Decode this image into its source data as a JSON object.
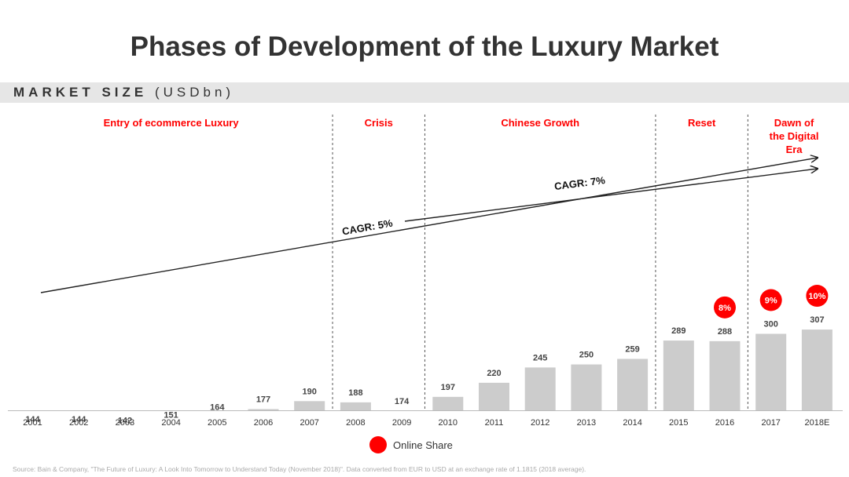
{
  "title": "Phases of Development of the Luxury Market",
  "band": {
    "main": "MARKET SIZE",
    "unit": "(USDbn)"
  },
  "legend": {
    "label": "Online Share",
    "color": "#ff0000"
  },
  "source": "Source: Bain & Company, \"The Future of Luxury: A Look Into Tomorrow to Understand Today (November 2018)\". Data converted from EUR to USD at an exchange rate of 1.1815 (2018 average).",
  "chart_data": {
    "type": "bar",
    "categories": [
      "2001",
      "2002",
      "2003",
      "2004",
      "2005",
      "2006",
      "2007",
      "2008",
      "2009",
      "2010",
      "2011",
      "2012",
      "2013",
      "2014",
      "2015",
      "2016",
      "2017",
      "2018E"
    ],
    "values": [
      144,
      144,
      142,
      151,
      164,
      177,
      190,
      188,
      174,
      197,
      220,
      245,
      250,
      259,
      289,
      288,
      300,
      307
    ],
    "ylabel": "MARKET SIZE (USDbn)",
    "bar_color": "#cccccc",
    "phases": [
      {
        "label": "Entry of ecommerce Luxury",
        "start": "2001",
        "end": "2007"
      },
      {
        "label": "Crisis",
        "start": "2008",
        "end": "2009"
      },
      {
        "label": "Chinese Growth",
        "start": "2010",
        "end": "2014"
      },
      {
        "label": "Reset",
        "start": "2015",
        "end": "2016"
      },
      {
        "label": "Dawn of the Digital Era",
        "start": "2017",
        "end": "2018E"
      }
    ],
    "phase_color": "#ff0000",
    "online_share": [
      {
        "category": "2016",
        "label": "8%"
      },
      {
        "category": "2017",
        "label": "9%"
      },
      {
        "category": "2018E",
        "label": "10%"
      }
    ],
    "annotations": [
      {
        "label": "CAGR: 5%",
        "from": "2001",
        "to": "2018E"
      },
      {
        "label": "CAGR: 7%",
        "from": "2009",
        "to": "2018E"
      }
    ]
  }
}
